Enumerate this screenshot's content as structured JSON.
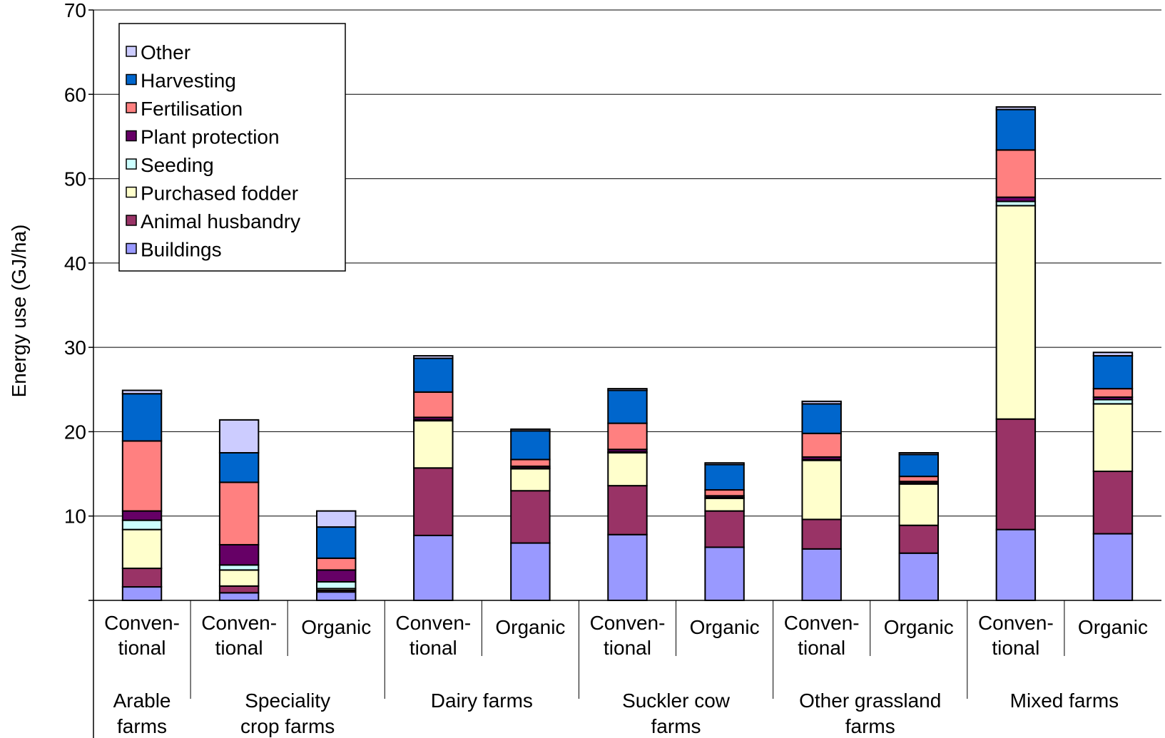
{
  "chart_data": {
    "type": "bar",
    "stacked": true,
    "title": "",
    "xlabel": "",
    "ylabel": "Energy use (GJ/ha)",
    "ylim": [
      0,
      70
    ],
    "yticks": [
      10,
      20,
      30,
      40,
      50,
      60,
      70
    ],
    "grid": true,
    "legend_position": "top-left",
    "categories": [
      {
        "line1": "Conven-",
        "line2": "tional",
        "group": "Arable farms"
      },
      {
        "line1": "Conven-",
        "line2": "tional",
        "group": "Speciality crop farms"
      },
      {
        "line1": "Organic",
        "line2": "",
        "group": "Speciality crop farms"
      },
      {
        "line1": "Conven-",
        "line2": "tional",
        "group": "Dairy farms"
      },
      {
        "line1": "Organic",
        "line2": "",
        "group": "Dairy farms"
      },
      {
        "line1": "Conven-",
        "line2": "tional",
        "group": "Suckler cow farms"
      },
      {
        "line1": "Organic",
        "line2": "",
        "group": "Suckler cow farms"
      },
      {
        "line1": "Conven-",
        "line2": "tional",
        "group": "Other grassland farms"
      },
      {
        "line1": "Organic",
        "line2": "",
        "group": "Other grassland farms"
      },
      {
        "line1": "Conven-",
        "line2": "tional",
        "group": "Mixed farms"
      },
      {
        "line1": "Organic",
        "line2": "",
        "group": "Mixed farms"
      }
    ],
    "groups": [
      {
        "line1": "Arable",
        "line2": "farms"
      },
      {
        "line1": "Speciality",
        "line2": "crop farms"
      },
      {
        "line1": "Dairy farms",
        "line2": ""
      },
      {
        "line1": "Suckler cow",
        "line2": "farms"
      },
      {
        "line1": "Other grassland",
        "line2": "farms"
      },
      {
        "line1": "Mixed farms",
        "line2": ""
      }
    ],
    "series": [
      {
        "name": "Buildings",
        "color": "#9999ff",
        "values": [
          1.6,
          0.9,
          1.0,
          7.7,
          6.8,
          7.8,
          6.3,
          6.1,
          5.6,
          8.4,
          7.9
        ]
      },
      {
        "name": "Animal husbandry",
        "color": "#993366",
        "values": [
          2.2,
          0.8,
          0.2,
          8.0,
          6.2,
          5.8,
          4.3,
          3.5,
          3.3,
          13.1,
          7.4
        ]
      },
      {
        "name": "Purchased fodder",
        "color": "#ffffcc",
        "values": [
          4.6,
          1.9,
          0.2,
          5.6,
          2.6,
          3.9,
          1.5,
          7.0,
          4.9,
          25.3,
          8.0
        ]
      },
      {
        "name": "Seeding",
        "color": "#ccffff",
        "values": [
          1.1,
          0.6,
          0.8,
          0.1,
          0.1,
          0.1,
          0.1,
          0.1,
          0.1,
          0.5,
          0.5
        ]
      },
      {
        "name": "Plant protection",
        "color": "#660066",
        "values": [
          1.1,
          2.4,
          1.4,
          0.3,
          0.2,
          0.3,
          0.2,
          0.3,
          0.2,
          0.5,
          0.3
        ]
      },
      {
        "name": "Fertilisation",
        "color": "#ff8080",
        "values": [
          8.3,
          7.4,
          1.4,
          3.0,
          0.8,
          3.1,
          0.7,
          2.8,
          0.6,
          5.6,
          1.0
        ]
      },
      {
        "name": "Harvesting",
        "color": "#0066cc",
        "values": [
          5.6,
          3.5,
          3.7,
          4.0,
          3.4,
          3.9,
          3.0,
          3.5,
          2.6,
          4.8,
          3.9
        ]
      },
      {
        "name": "Other",
        "color": "#ccccff",
        "values": [
          0.4,
          3.9,
          1.9,
          0.3,
          0.2,
          0.2,
          0.2,
          0.3,
          0.2,
          0.3,
          0.4
        ]
      }
    ]
  }
}
